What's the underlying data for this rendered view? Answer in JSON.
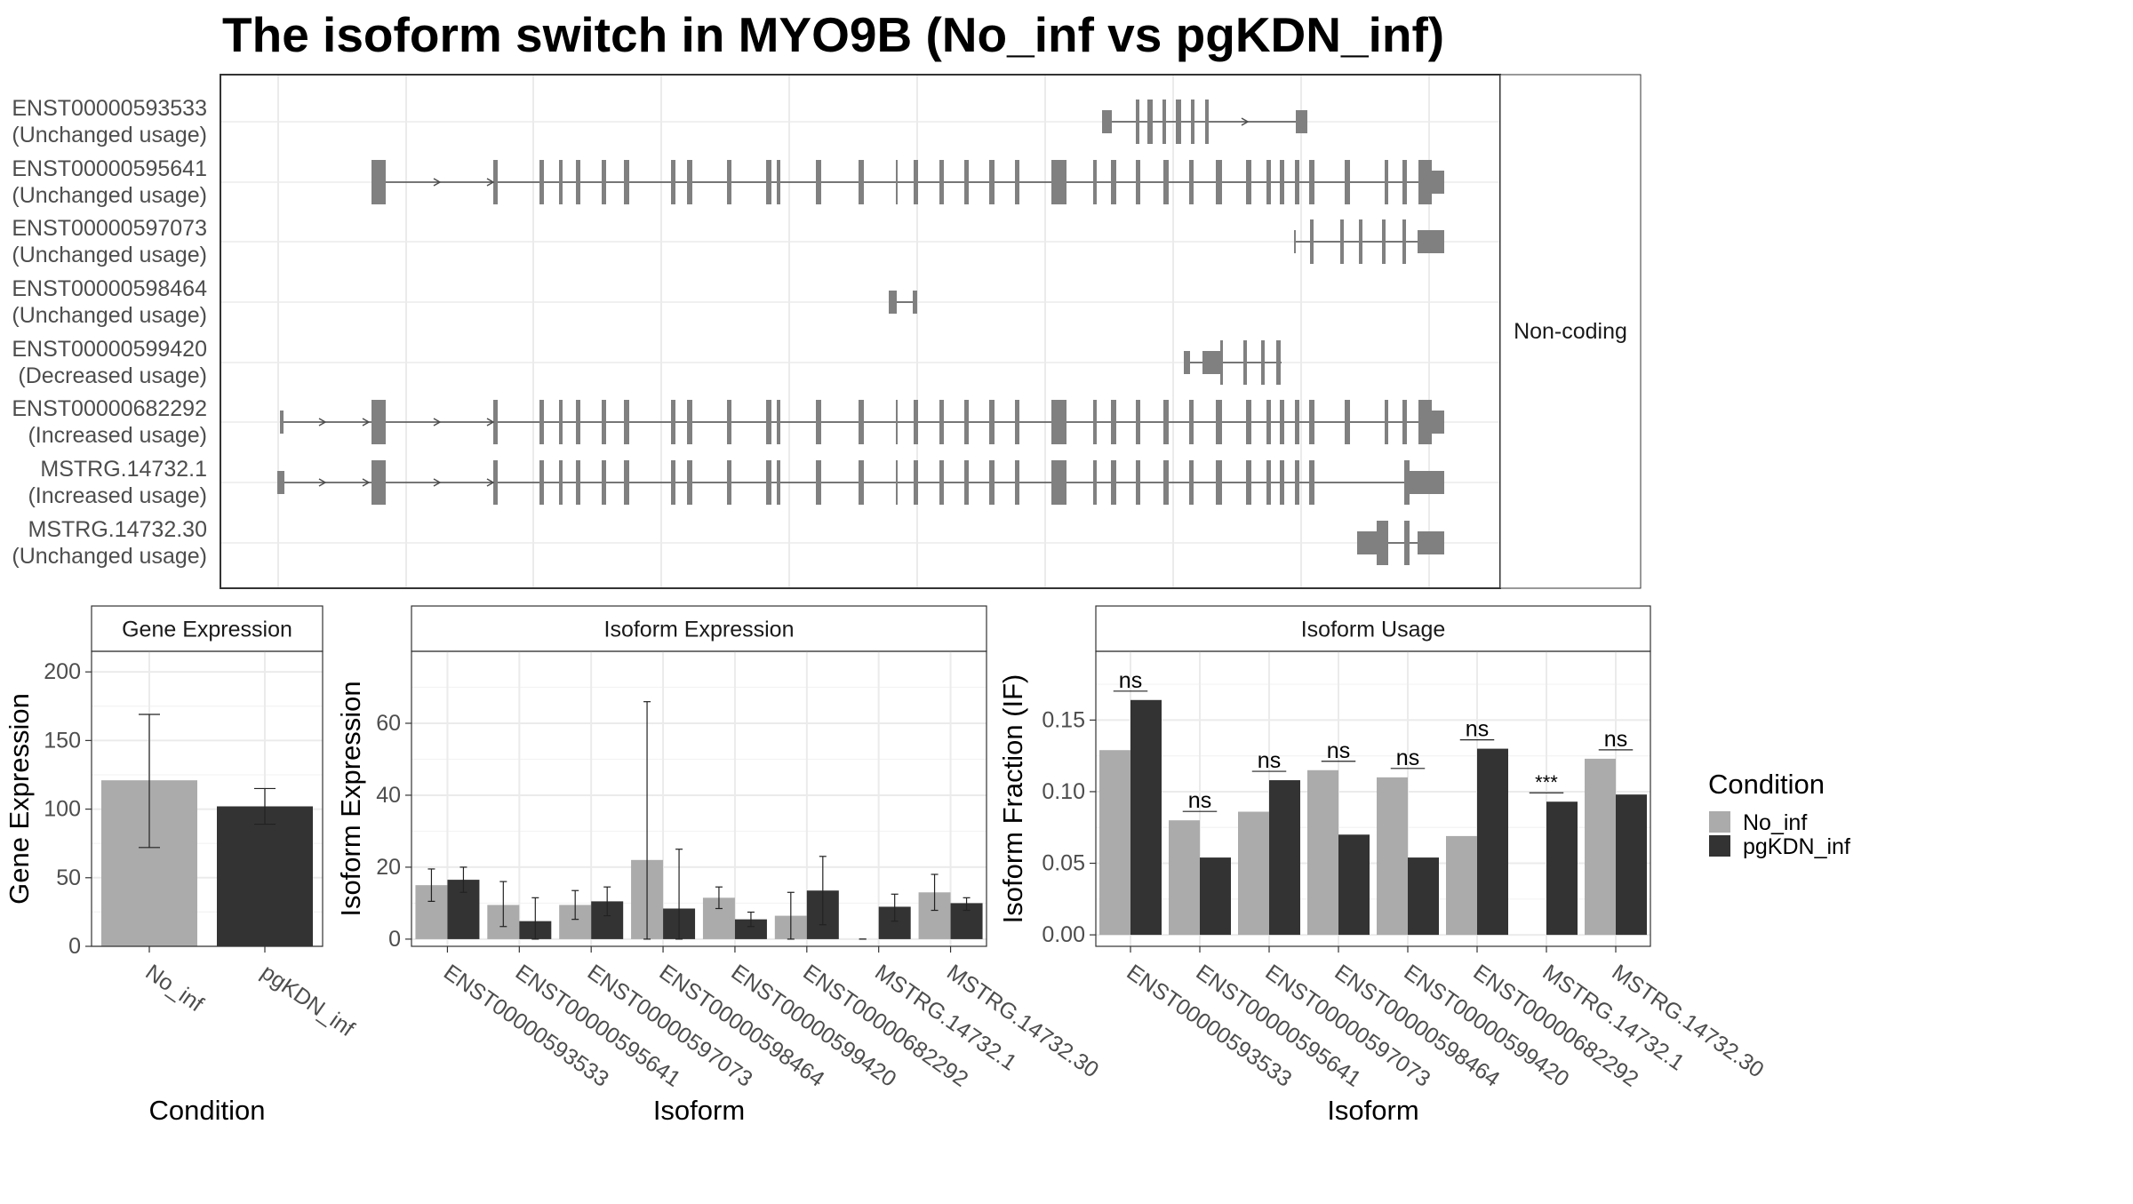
{
  "title": "The isoform switch in MYO9B (No_inf vs pgKDN_inf)",
  "colors": {
    "no_inf": "#ababab",
    "pgkdn_inf": "#333333",
    "exon": "#808080",
    "grid": "#ebebeb",
    "frame": "#333333",
    "strip": "#ffffff"
  },
  "chart_data": [
    {
      "type": "gene-structure",
      "facet": "Non-coding",
      "transcripts": [
        {
          "id": "ENST00000593533",
          "usage": "(Unchanged usage)"
        },
        {
          "id": "ENST00000595641",
          "usage": "(Unchanged usage)"
        },
        {
          "id": "ENST00000597073",
          "usage": "(Unchanged usage)"
        },
        {
          "id": "ENST00000598464",
          "usage": "(Unchanged usage)"
        },
        {
          "id": "ENST00000599420",
          "usage": "(Decreased usage)"
        },
        {
          "id": "ENST00000682292",
          "usage": "(Increased usage)"
        },
        {
          "id": "MSTRG.14732.1",
          "usage": "(Increased usage)"
        },
        {
          "id": "MSTRG.14732.30",
          "usage": "(Unchanged usage)"
        }
      ]
    },
    {
      "type": "bar",
      "title": "Gene Expression",
      "xlabel": "Condition",
      "ylabel": "Gene Expression",
      "ylim": [
        0,
        215
      ],
      "yticks": [
        0,
        50,
        100,
        150,
        200
      ],
      "categories": [
        "No_inf",
        "pgKDN_inf"
      ],
      "values": [
        121,
        102
      ],
      "errors": [
        [
          72,
          169
        ],
        [
          89,
          115
        ]
      ]
    },
    {
      "type": "bar",
      "title": "Isoform Expression",
      "xlabel": "Isoform",
      "ylabel": "Isoform Expression",
      "ylim": [
        -2,
        80
      ],
      "yticks": [
        0,
        20,
        40,
        60
      ],
      "categories": [
        "ENST00000593533",
        "ENST00000595641",
        "ENST00000597073",
        "ENST00000598464",
        "ENST00000599420",
        "ENST00000682292",
        "MSTRG.14732.1",
        "MSTRG.14732.30"
      ],
      "series": [
        {
          "name": "No_inf",
          "values": [
            15,
            9.5,
            9.5,
            22,
            11.5,
            6.5,
            0,
            13
          ],
          "errors": [
            [
              10.5,
              19.5
            ],
            [
              3.5,
              16
            ],
            [
              5.5,
              13.5
            ],
            [
              0,
              66
            ],
            [
              8.5,
              14.5
            ],
            [
              0,
              13
            ],
            [
              0,
              0
            ],
            [
              8,
              18
            ]
          ]
        },
        {
          "name": "pgKDN_inf",
          "values": [
            16.5,
            5,
            10.5,
            8.5,
            5.5,
            13.5,
            9,
            10
          ],
          "errors": [
            [
              13,
              20
            ],
            [
              0,
              11.5
            ],
            [
              6.5,
              14.5
            ],
            [
              0,
              25
            ],
            [
              3.5,
              7.5
            ],
            [
              4,
              23
            ],
            [
              5,
              12.5
            ],
            [
              8,
              11.5
            ]
          ]
        }
      ]
    },
    {
      "type": "bar",
      "title": "Isoform Usage",
      "xlabel": "Isoform",
      "ylabel": "Isoform Fraction (IF)",
      "ylim": [
        -0.008,
        0.198
      ],
      "yticks": [
        0.0,
        0.05,
        0.1,
        0.15
      ],
      "ytick_labels": [
        "0.00",
        "0.05",
        "0.10",
        "0.15"
      ],
      "categories": [
        "ENST00000593533",
        "ENST00000595641",
        "ENST00000597073",
        "ENST00000598464",
        "ENST00000599420",
        "ENST00000682292",
        "MSTRG.14732.1",
        "MSTRG.14732.30"
      ],
      "series": [
        {
          "name": "No_inf",
          "values": [
            0.129,
            0.08,
            0.086,
            0.115,
            0.11,
            0.069,
            0.0,
            0.123
          ]
        },
        {
          "name": "pgKDN_inf",
          "values": [
            0.164,
            0.054,
            0.108,
            0.07,
            0.054,
            0.13,
            0.093,
            0.098
          ]
        }
      ],
      "significance": [
        "ns",
        "ns",
        "ns",
        "ns",
        "ns",
        "ns",
        "***",
        "ns"
      ]
    }
  ],
  "legend": {
    "title": "Condition",
    "items": [
      "No_inf",
      "pgKDN_inf"
    ]
  }
}
